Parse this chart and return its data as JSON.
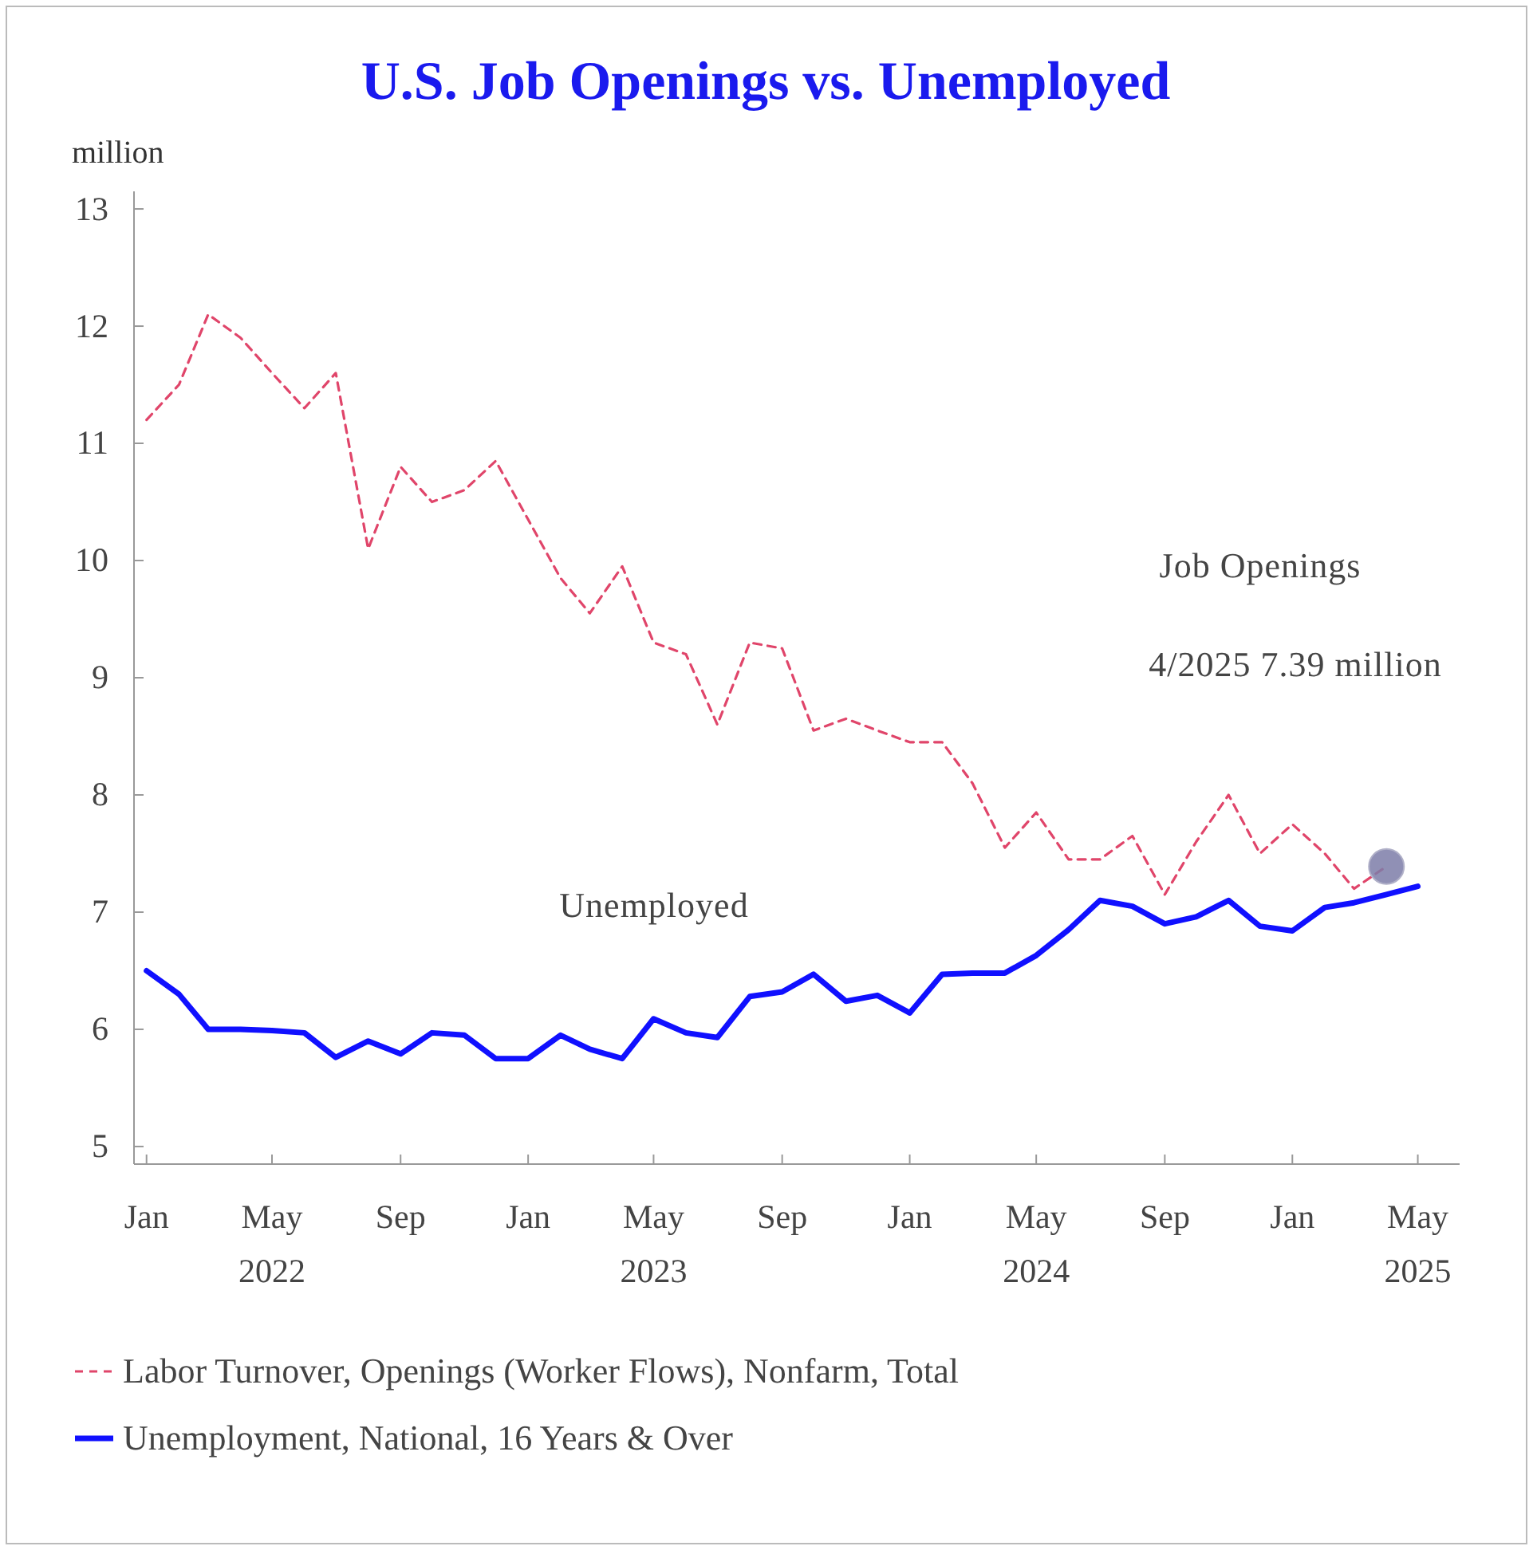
{
  "chart_data": {
    "type": "line",
    "title": "U.S. Job Openings vs. Unemployed",
    "ylabel": "million",
    "x": [
      "2022-01",
      "2022-02",
      "2022-03",
      "2022-04",
      "2022-05",
      "2022-06",
      "2022-07",
      "2022-08",
      "2022-09",
      "2022-10",
      "2022-11",
      "2022-12",
      "2023-01",
      "2023-02",
      "2023-03",
      "2023-04",
      "2023-05",
      "2023-06",
      "2023-07",
      "2023-08",
      "2023-09",
      "2023-10",
      "2023-11",
      "2023-12",
      "2024-01",
      "2024-02",
      "2024-03",
      "2024-04",
      "2024-05",
      "2024-06",
      "2024-07",
      "2024-08",
      "2024-09",
      "2024-10",
      "2024-11",
      "2024-12",
      "2025-01",
      "2025-02",
      "2025-03",
      "2025-04",
      "2025-05"
    ],
    "series": [
      {
        "name": "Labor Turnover, Openings (Worker Flows), Nonfarm, Total",
        "color": "#e0456a",
        "line_style": "dashed",
        "values": [
          11.2,
          11.5,
          12.1,
          11.9,
          11.6,
          11.3,
          11.6,
          10.1,
          10.8,
          10.5,
          10.6,
          10.85,
          10.35,
          9.85,
          9.55,
          9.95,
          9.3,
          9.2,
          8.6,
          9.3,
          9.25,
          8.55,
          8.65,
          8.55,
          8.45,
          8.45,
          8.1,
          7.55,
          7.85,
          7.45,
          7.45,
          7.65,
          7.15,
          7.6,
          8.0,
          7.5,
          7.75,
          7.5,
          7.2,
          7.39,
          null
        ]
      },
      {
        "name": "Unemployment, National, 16 Years & Over",
        "color": "#1010ff",
        "line_style": "solid",
        "values": [
          6.5,
          6.3,
          6.0,
          6.0,
          5.99,
          5.97,
          5.76,
          5.9,
          5.79,
          5.97,
          5.95,
          5.75,
          5.75,
          5.95,
          5.83,
          5.75,
          6.09,
          5.97,
          5.93,
          6.28,
          6.32,
          6.47,
          6.24,
          6.29,
          6.14,
          6.47,
          6.48,
          6.48,
          6.63,
          6.85,
          7.1,
          7.05,
          6.9,
          6.96,
          7.1,
          6.88,
          6.84,
          7.04,
          7.08,
          7.15,
          7.22
        ]
      },
      {
        "type": "scatter",
        "x": [
          "2025-04"
        ],
        "color": "#7c7ca8",
        "marker": "circle",
        "values": [
          7.39
        ]
      }
    ],
    "xlim": [
      "2021-12-20",
      "2025-06-10"
    ],
    "xticks": [
      {
        "value": "2022-01",
        "label": "Jan"
      },
      {
        "value": "2022-05",
        "label": "May\n2022"
      },
      {
        "value": "2022-09",
        "label": "Sep"
      },
      {
        "value": "2023-01",
        "label": "Jan"
      },
      {
        "value": "2023-05",
        "label": "May\n2023"
      },
      {
        "value": "2023-09",
        "label": "Sep"
      },
      {
        "value": "2024-01",
        "label": "Jan"
      },
      {
        "value": "2024-05",
        "label": "May\n2024"
      },
      {
        "value": "2024-09",
        "label": "Sep"
      },
      {
        "value": "2025-01",
        "label": "Jan"
      },
      {
        "value": "2025-05",
        "label": "May\n2025"
      }
    ],
    "ylim": [
      4.85,
      13.15
    ],
    "yticks": [
      5,
      6,
      7,
      8,
      9,
      10,
      11,
      12,
      13
    ],
    "grid": false,
    "legend": "bottom",
    "annotations": [
      "Job Openings",
      "4/2025 7.39 million",
      "Unemployed"
    ]
  }
}
